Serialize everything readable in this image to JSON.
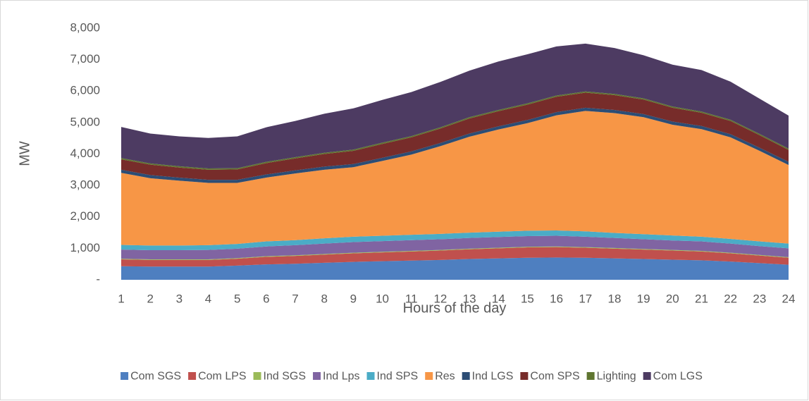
{
  "chart_data": {
    "type": "stacked-area",
    "xlabel": "Hours of the day",
    "ylabel": "MW",
    "categories": [
      "1",
      "2",
      "3",
      "4",
      "5",
      "6",
      "7",
      "8",
      "9",
      "10",
      "11",
      "12",
      "13",
      "14",
      "15",
      "16",
      "17",
      "18",
      "19",
      "20",
      "21",
      "22",
      "23",
      "24"
    ],
    "ylim": [
      0,
      8000
    ],
    "yticks": [
      {
        "value": 0,
        "label": "-"
      },
      {
        "value": 1000,
        "label": "1,000"
      },
      {
        "value": 2000,
        "label": "2,000"
      },
      {
        "value": 3000,
        "label": "3,000"
      },
      {
        "value": 4000,
        "label": "4,000"
      },
      {
        "value": 5000,
        "label": "5,000"
      },
      {
        "value": 6000,
        "label": "6,000"
      },
      {
        "value": 7000,
        "label": "7,000"
      },
      {
        "value": 8000,
        "label": "8,000"
      }
    ],
    "grid": false,
    "legend": "bottom",
    "series": [
      {
        "name": "Com SGS",
        "color": "#4e7fc0",
        "values": [
          430,
          420,
          420,
          420,
          450,
          490,
          510,
          540,
          570,
          590,
          610,
          630,
          660,
          680,
          700,
          710,
          700,
          680,
          660,
          640,
          620,
          580,
          530,
          480
        ]
      },
      {
        "name": "Com LPS",
        "color": "#c0504d",
        "values": [
          220,
          210,
          210,
          210,
          220,
          240,
          250,
          260,
          270,
          280,
          290,
          300,
          310,
          320,
          330,
          330,
          320,
          310,
          300,
          290,
          280,
          260,
          240,
          220
        ]
      },
      {
        "name": "Ind SGS",
        "color": "#9bbb59",
        "values": [
          20,
          20,
          20,
          20,
          20,
          20,
          20,
          20,
          20,
          20,
          20,
          20,
          20,
          20,
          20,
          20,
          20,
          20,
          20,
          20,
          20,
          20,
          20,
          20
        ]
      },
      {
        "name": "Ind Lps",
        "color": "#8064a2",
        "values": [
          290,
          290,
          290,
          300,
          300,
          310,
          320,
          330,
          340,
          340,
          340,
          340,
          340,
          340,
          340,
          340,
          330,
          320,
          310,
          300,
          300,
          290,
          280,
          280
        ]
      },
      {
        "name": "Ind SPS",
        "color": "#4bacc6",
        "values": [
          150,
          150,
          150,
          150,
          150,
          160,
          160,
          170,
          170,
          170,
          170,
          170,
          170,
          170,
          170,
          170,
          170,
          160,
          160,
          160,
          150,
          150,
          150,
          150
        ]
      },
      {
        "name": "Res",
        "color": "#f79646",
        "values": [
          2290,
          2140,
          2060,
          1980,
          1940,
          2030,
          2120,
          2180,
          2210,
          2380,
          2550,
          2790,
          3050,
          3250,
          3420,
          3660,
          3830,
          3810,
          3720,
          3520,
          3420,
          3230,
          2880,
          2500
        ]
      },
      {
        "name": "Ind LGS",
        "color": "#2c4d75",
        "values": [
          100,
          100,
          100,
          100,
          100,
          100,
          100,
          100,
          100,
          100,
          100,
          100,
          100,
          100,
          100,
          100,
          100,
          100,
          100,
          100,
          100,
          100,
          100,
          100
        ]
      },
      {
        "name": "Com SPS",
        "color": "#772c2a",
        "values": [
          330,
          330,
          320,
          320,
          330,
          360,
          380,
          400,
          420,
          440,
          450,
          460,
          480,
          480,
          490,
          490,
          480,
          470,
          460,
          440,
          420,
          420,
          400,
          380
        ]
      },
      {
        "name": "Lighting",
        "color": "#5f7530",
        "values": [
          40,
          40,
          40,
          40,
          40,
          40,
          40,
          40,
          40,
          40,
          40,
          40,
          40,
          40,
          40,
          40,
          40,
          40,
          40,
          40,
          40,
          40,
          40,
          40
        ]
      },
      {
        "name": "Com LGS",
        "color": "#4d3b62",
        "values": [
          990,
          950,
          950,
          970,
          1010,
          1100,
          1150,
          1240,
          1310,
          1360,
          1400,
          1440,
          1480,
          1540,
          1560,
          1560,
          1520,
          1460,
          1370,
          1330,
          1320,
          1210,
          1120,
          1050
        ]
      }
    ]
  }
}
